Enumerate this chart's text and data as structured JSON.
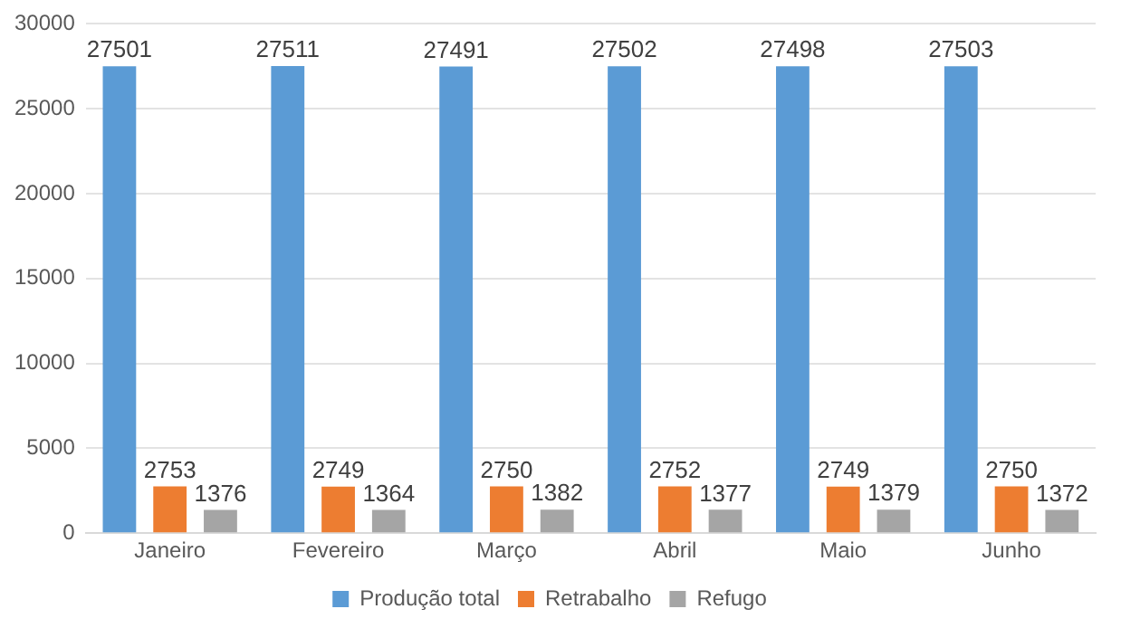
{
  "chart_data": {
    "type": "bar",
    "categories": [
      "Janeiro",
      "Fevereiro",
      "Março",
      "Abril",
      "Maio",
      "Junho"
    ],
    "series": [
      {
        "name": "Produção total",
        "color": "#5b9bd5",
        "values": [
          27501,
          27511,
          27491,
          27502,
          27498,
          27503
        ]
      },
      {
        "name": "Retrabalho",
        "color": "#ed7d31",
        "values": [
          2753,
          2749,
          2750,
          2752,
          2749,
          2750
        ]
      },
      {
        "name": "Refugo",
        "color": "#a5a5a5",
        "values": [
          1376,
          1364,
          1382,
          1377,
          1379,
          1372
        ]
      }
    ],
    "ylim": [
      0,
      30000
    ],
    "yticks": [
      0,
      5000,
      10000,
      15000,
      20000,
      25000,
      30000
    ],
    "grid": "y",
    "legend": "bottom",
    "data_labels": true
  }
}
